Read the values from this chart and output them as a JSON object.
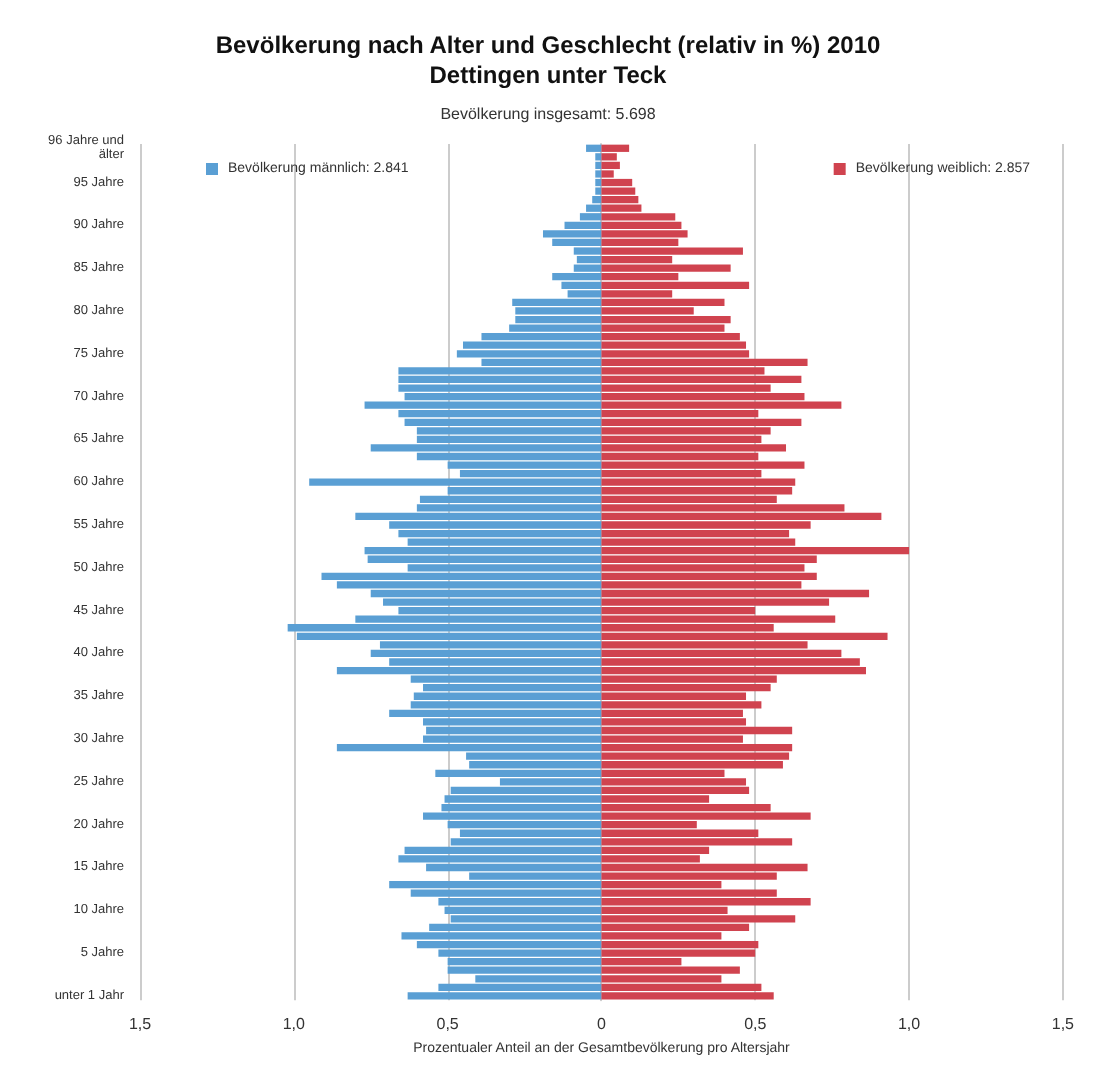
{
  "chart_data": {
    "type": "bar",
    "orientation": "horizontal",
    "stacked": true,
    "title": "Bevölkerung nach Alter und Geschlecht (relativ in %) 2010\nDettingen unter Teck",
    "subtitle": "Bevölkerung insgesamt: 5.698",
    "xlabel": "Prozentualer Anteil an der Gesamtbevölkerung pro Altersjahr",
    "categories": [
      "96 Jahre und älter",
      null,
      null,
      null,
      "95 Jahre",
      null,
      null,
      null,
      null,
      "90 Jahre",
      null,
      null,
      null,
      null,
      "85 Jahre",
      null,
      null,
      null,
      null,
      "80 Jahre",
      null,
      null,
      null,
      null,
      "75 Jahre",
      null,
      null,
      null,
      null,
      "70 Jahre",
      null,
      null,
      null,
      null,
      "65 Jahre",
      null,
      null,
      null,
      null,
      "60 Jahre",
      null,
      null,
      null,
      null,
      "55 Jahre",
      null,
      null,
      null,
      null,
      "50 Jahre",
      null,
      null,
      null,
      null,
      "45 Jahre",
      null,
      null,
      null,
      null,
      "40 Jahre",
      null,
      null,
      null,
      null,
      "35 Jahre",
      null,
      null,
      null,
      null,
      "30 Jahre",
      null,
      null,
      null,
      null,
      "25 Jahre",
      null,
      null,
      null,
      null,
      "20 Jahre",
      null,
      null,
      null,
      null,
      "15 Jahre",
      null,
      null,
      null,
      null,
      "10 Jahre",
      null,
      null,
      null,
      null,
      "5 Jahre",
      null,
      null,
      null,
      null,
      "unter 1 Jahr"
    ],
    "series": [
      {
        "name": "Bevölkerung männlich: 2.841",
        "color": "#5a9fd4",
        "values": [
          -0.05,
          -0.02,
          -0.02,
          -0.02,
          -0.02,
          -0.02,
          -0.03,
          -0.05,
          -0.07,
          -0.12,
          -0.19,
          -0.16,
          -0.09,
          -0.08,
          -0.09,
          -0.16,
          -0.13,
          -0.11,
          -0.29,
          -0.28,
          -0.28,
          -0.3,
          -0.39,
          -0.45,
          -0.47,
          -0.39,
          -0.66,
          -0.66,
          -0.66,
          -0.64,
          -0.77,
          -0.66,
          -0.64,
          -0.6,
          -0.6,
          -0.75,
          -0.6,
          -0.5,
          -0.46,
          -0.95,
          -0.5,
          -0.59,
          -0.6,
          -0.8,
          -0.69,
          -0.66,
          -0.63,
          -0.77,
          -0.76,
          -0.63,
          -0.91,
          -0.86,
          -0.75,
          -0.71,
          -0.66,
          -0.8,
          -1.02,
          -0.99,
          -0.72,
          -0.75,
          -0.69,
          -0.86,
          -0.62,
          -0.58,
          -0.61,
          -0.62,
          -0.69,
          -0.58,
          -0.57,
          -0.58,
          -0.86,
          -0.44,
          -0.43,
          -0.54,
          -0.33,
          -0.49,
          -0.51,
          -0.52,
          -0.58,
          -0.5,
          -0.46,
          -0.49,
          -0.64,
          -0.66,
          -0.57,
          -0.43,
          -0.69,
          -0.62,
          -0.53,
          -0.51,
          -0.49,
          -0.56,
          -0.65,
          -0.6,
          -0.53,
          -0.5,
          -0.5,
          -0.41,
          -0.53,
          -0.63
        ]
      },
      {
        "name": "Bevölkerung weiblich: 2.857",
        "color": "#d0434f",
        "values": [
          0.09,
          0.05,
          0.06,
          0.04,
          0.1,
          0.11,
          0.12,
          0.13,
          0.24,
          0.26,
          0.28,
          0.25,
          0.46,
          0.23,
          0.42,
          0.25,
          0.48,
          0.23,
          0.4,
          0.3,
          0.42,
          0.4,
          0.45,
          0.47,
          0.48,
          0.67,
          0.53,
          0.65,
          0.55,
          0.66,
          0.78,
          0.51,
          0.65,
          0.55,
          0.52,
          0.6,
          0.51,
          0.66,
          0.52,
          0.63,
          0.62,
          0.57,
          0.79,
          0.91,
          0.68,
          0.61,
          0.63,
          1.0,
          0.7,
          0.66,
          0.7,
          0.65,
          0.87,
          0.74,
          0.5,
          0.76,
          0.56,
          0.93,
          0.67,
          0.78,
          0.84,
          0.86,
          0.57,
          0.55,
          0.47,
          0.52,
          0.46,
          0.47,
          0.62,
          0.46,
          0.62,
          0.61,
          0.59,
          0.4,
          0.47,
          0.48,
          0.35,
          0.55,
          0.68,
          0.31,
          0.51,
          0.62,
          0.35,
          0.32,
          0.67,
          0.57,
          0.39,
          0.57,
          0.68,
          0.41,
          0.63,
          0.48,
          0.39,
          0.51,
          0.5,
          0.26,
          0.45,
          0.39,
          0.52,
          0.56
        ]
      }
    ],
    "xlim": [
      -1.5,
      1.5
    ],
    "xticks": [
      {
        "value": -1.5,
        "label": "1,5"
      },
      {
        "value": -1,
        "label": "1,0"
      },
      {
        "value": -0.5,
        "label": "0,5"
      },
      0,
      {
        "value": 0.5,
        "label": "0,5"
      },
      {
        "value": 1,
        "label": "1,0"
      },
      {
        "value": 1.5,
        "label": "1,5"
      }
    ],
    "grid": "x",
    "legend": "top"
  }
}
